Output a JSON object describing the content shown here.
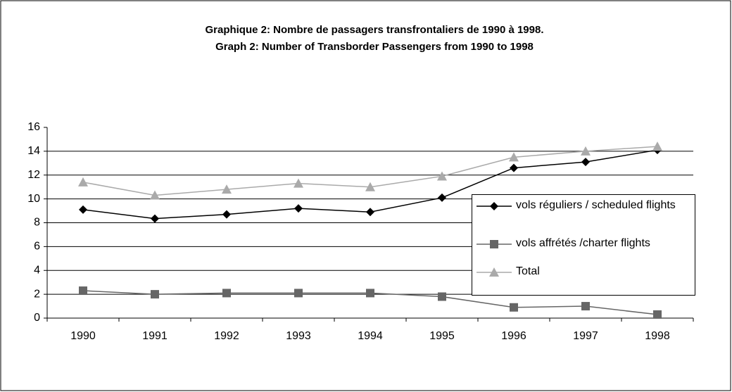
{
  "chart_data": {
    "type": "line",
    "title": "Graphique 2: Nombre de passagers transfrontaliers de 1990 à 1998.",
    "subtitle": "Graph 2: Number of Transborder Passengers from 1990 to 1998",
    "categories": [
      "1990",
      "1991",
      "1992",
      "1993",
      "1994",
      "1995",
      "1996",
      "1997",
      "1998"
    ],
    "series": [
      {
        "name": "vols réguliers / scheduled flights",
        "color": "#000000",
        "marker": "diamond",
        "values": [
          9.1,
          8.35,
          8.7,
          9.2,
          8.9,
          10.1,
          12.6,
          13.1,
          14.1
        ]
      },
      {
        "name": "vols affrétés /charter flights",
        "color": "#666666",
        "marker": "square",
        "values": [
          2.3,
          2.0,
          2.1,
          2.1,
          2.1,
          1.8,
          0.9,
          1.0,
          0.3
        ]
      },
      {
        "name": "Total",
        "color": "#aaaaaa",
        "marker": "triangle",
        "values": [
          11.4,
          10.3,
          10.8,
          11.3,
          11.0,
          11.9,
          13.5,
          14.0,
          14.4
        ]
      }
    ],
    "ylim": [
      0,
      16
    ],
    "yticks": [
      0,
      2,
      4,
      6,
      8,
      10,
      12,
      14,
      16
    ],
    "grid": true,
    "legend": "right"
  }
}
